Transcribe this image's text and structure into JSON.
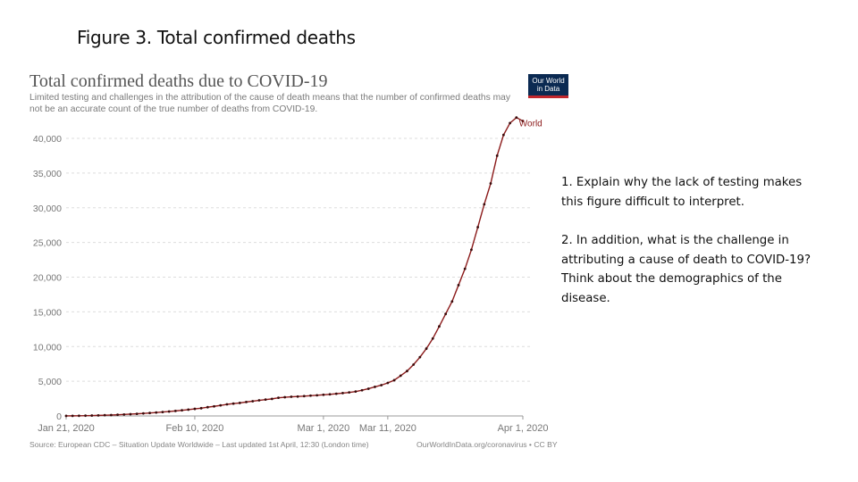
{
  "slide": {
    "title": "Figure 3. Total confirmed deaths",
    "questions": [
      "1. Explain why the lack of testing makes this figure difficult to interpret.",
      "2. In addition, what is the challenge in attributing a cause of death to COVID-19?  Think about the demographics of the disease."
    ]
  },
  "logo": {
    "line1": "Our World",
    "line2": "in Data"
  },
  "source": {
    "left": "Source: European CDC – Situation Update Worldwide – Last updated 1st April, 12:30 (London time)",
    "right": "OurWorldInData.org/coronavirus • CC BY"
  },
  "colors": {
    "series": "#8b1a1a",
    "grid": "#dddddd",
    "axis": "#777777",
    "logo_bg": "#0b2a52",
    "logo_accent": "#c1272d"
  },
  "chart_data": {
    "type": "line",
    "title": "Total confirmed deaths due to COVID-19",
    "subtitle": "Limited testing and challenges in the attribution of the cause of death means that the number of confirmed deaths may not be an accurate count of the true number of deaths from COVID-19.",
    "xlabel": "",
    "ylabel": "",
    "ylim": [
      0,
      40000
    ],
    "y_ticks": [
      0,
      5000,
      10000,
      15000,
      20000,
      25000,
      30000,
      35000,
      40000
    ],
    "y_tick_labels": [
      "0",
      "5,000",
      "10,000",
      "15,000",
      "20,000",
      "25,000",
      "30,000",
      "35,000",
      "40,000"
    ],
    "x_ticks": [
      0,
      20,
      40,
      50,
      71
    ],
    "x_tick_labels": [
      "Jan 21, 2020",
      "Feb 10, 2020",
      "Mar 1, 2020",
      "Mar 11, 2020",
      "Apr 1, 2020"
    ],
    "grid": true,
    "series": [
      {
        "name": "World",
        "x": [
          0,
          1,
          2,
          3,
          4,
          5,
          6,
          7,
          8,
          9,
          10,
          11,
          12,
          13,
          14,
          15,
          16,
          17,
          18,
          19,
          20,
          21,
          22,
          23,
          24,
          25,
          26,
          27,
          28,
          29,
          30,
          31,
          32,
          33,
          34,
          35,
          36,
          37,
          38,
          39,
          40,
          41,
          42,
          43,
          44,
          45,
          46,
          47,
          48,
          49,
          50,
          51,
          52,
          53,
          54,
          55,
          56,
          57,
          58,
          59,
          60,
          61,
          62,
          63,
          64,
          65,
          66,
          67,
          68,
          69,
          70,
          71
        ],
        "values": [
          6,
          17,
          25,
          41,
          56,
          80,
          106,
          132,
          170,
          213,
          259,
          304,
          362,
          426,
          492,
          565,
          638,
          724,
          813,
          910,
          1018,
          1115,
          1261,
          1383,
          1526,
          1669,
          1775,
          1873,
          2009,
          2126,
          2247,
          2360,
          2460,
          2618,
          2699,
          2763,
          2800,
          2858,
          2923,
          2977,
          3050,
          3117,
          3200,
          3290,
          3390,
          3520,
          3700,
          3925,
          4190,
          4440,
          4760,
          5150,
          5800,
          6470,
          7400,
          8470,
          9700,
          11150,
          12900,
          14700,
          16500,
          18850,
          21200,
          23950,
          27200,
          30500,
          33500,
          37500,
          40500,
          42200,
          43000,
          42500
        ]
      }
    ],
    "legend": "end-of-line label"
  }
}
